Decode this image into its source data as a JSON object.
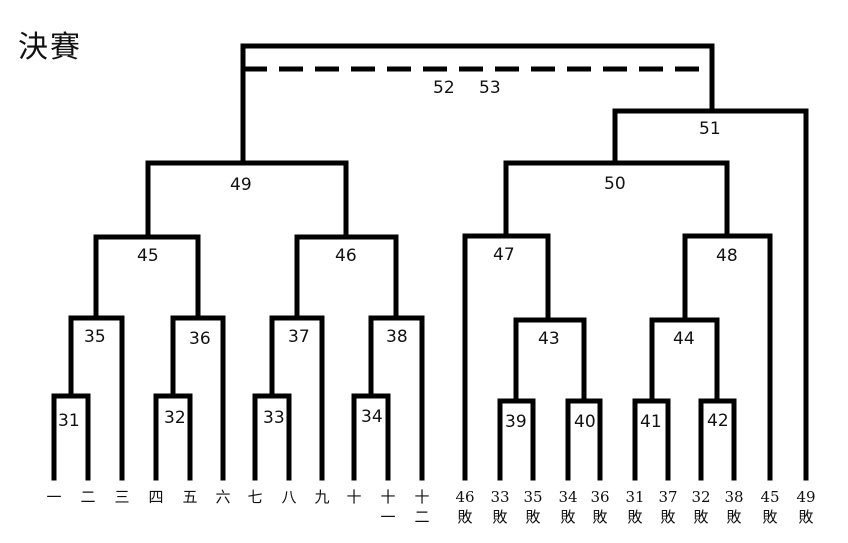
{
  "title": "決賽",
  "final_labels": [
    "52",
    "53"
  ],
  "matches": {
    "m31": "31",
    "m32": "32",
    "m33": "33",
    "m34": "34",
    "m35": "35",
    "m36": "36",
    "m37": "37",
    "m38": "38",
    "m39": "39",
    "m40": "40",
    "m41": "41",
    "m42": "42",
    "m43": "43",
    "m44": "44",
    "m45": "45",
    "m46": "46",
    "m47": "47",
    "m48": "48",
    "m49": "49",
    "m50": "50",
    "m51": "51"
  },
  "entrants": [
    {
      "l1": "一",
      "l2": ""
    },
    {
      "l1": "二",
      "l2": ""
    },
    {
      "l1": "三",
      "l2": ""
    },
    {
      "l1": "四",
      "l2": ""
    },
    {
      "l1": "五",
      "l2": ""
    },
    {
      "l1": "六",
      "l2": ""
    },
    {
      "l1": "七",
      "l2": ""
    },
    {
      "l1": "八",
      "l2": ""
    },
    {
      "l1": "九",
      "l2": ""
    },
    {
      "l1": "十",
      "l2": ""
    },
    {
      "l1": "十",
      "l2": "一"
    },
    {
      "l1": "十",
      "l2": "二"
    },
    {
      "l1": "46",
      "l2": "敗"
    },
    {
      "l1": "33",
      "l2": "敗"
    },
    {
      "l1": "35",
      "l2": "敗"
    },
    {
      "l1": "34",
      "l2": "敗"
    },
    {
      "l1": "36",
      "l2": "敗"
    },
    {
      "l1": "31",
      "l2": "敗"
    },
    {
      "l1": "37",
      "l2": "敗"
    },
    {
      "l1": "32",
      "l2": "敗"
    },
    {
      "l1": "38",
      "l2": "敗"
    },
    {
      "l1": "45",
      "l2": "敗"
    },
    {
      "l1": "49",
      "l2": "敗"
    }
  ]
}
